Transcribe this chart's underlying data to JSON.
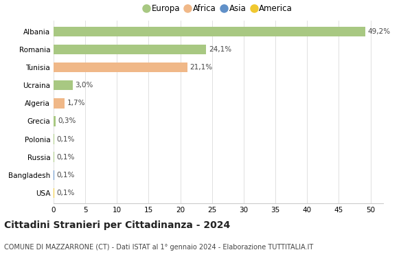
{
  "countries": [
    "Albania",
    "Romania",
    "Tunisia",
    "Ucraina",
    "Algeria",
    "Grecia",
    "Polonia",
    "Russia",
    "Bangladesh",
    "USA"
  ],
  "values": [
    49.2,
    24.1,
    21.1,
    3.0,
    1.7,
    0.3,
    0.1,
    0.1,
    0.1,
    0.1
  ],
  "labels": [
    "49,2%",
    "24,1%",
    "21,1%",
    "3,0%",
    "1,7%",
    "0,3%",
    "0,1%",
    "0,1%",
    "0,1%",
    "0,1%"
  ],
  "colors": [
    "#a8c882",
    "#a8c882",
    "#f0b888",
    "#a8c882",
    "#f0b888",
    "#a8c882",
    "#a8c882",
    "#a8c882",
    "#6090c8",
    "#f0c830"
  ],
  "continents": [
    "Europa",
    "Africa",
    "Asia",
    "America"
  ],
  "legend_colors": [
    "#a8c882",
    "#f0b888",
    "#6090c8",
    "#f0c830"
  ],
  "title": "Cittadini Stranieri per Cittadinanza - 2024",
  "subtitle": "COMUNE DI MAZZARRONE (CT) - Dati ISTAT al 1° gennaio 2024 - Elaborazione TUTTITALIA.IT",
  "xlim": [
    0,
    52
  ],
  "xticks": [
    0,
    5,
    10,
    15,
    20,
    25,
    30,
    35,
    40,
    45,
    50
  ],
  "background_color": "#ffffff",
  "bar_height": 0.55,
  "title_fontsize": 10,
  "subtitle_fontsize": 7,
  "tick_fontsize": 7.5,
  "label_fontsize": 7.5,
  "legend_fontsize": 8.5
}
